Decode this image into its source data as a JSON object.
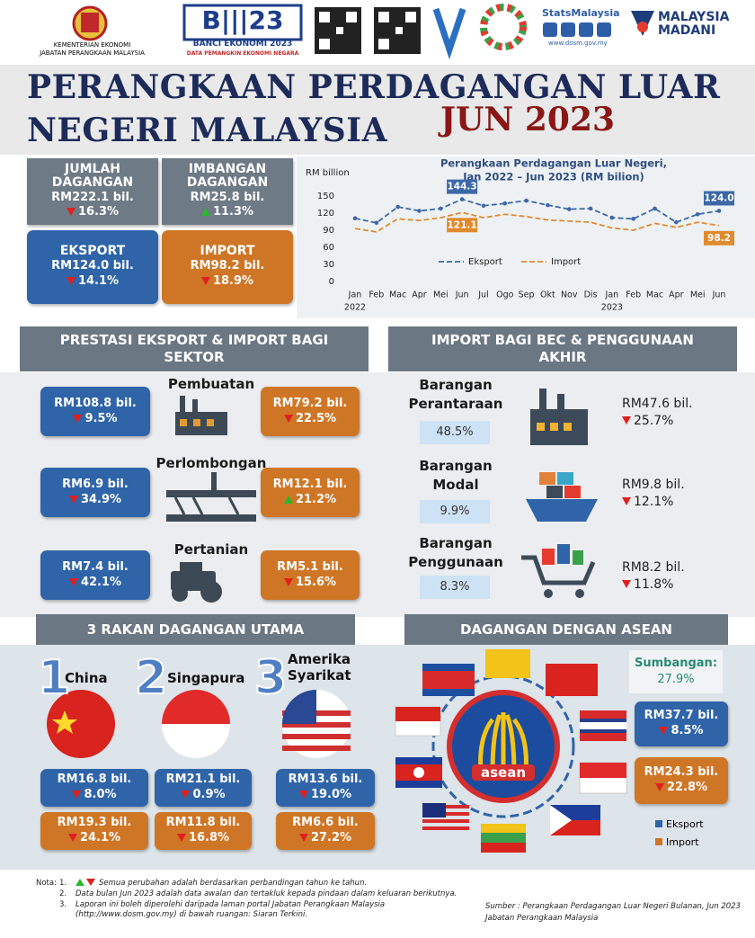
{
  "header": {
    "ministry": "KEMENTERIAN EKONOMI",
    "department": "JABATAN PERANGKAAN MALAYSIA",
    "census": "BANCI EKONOMI 2023",
    "census_tagline": "DATA PEMANGKIN EKONOMI NEGARA",
    "stats_brand": "StatsMalaysia",
    "website": "www.dosm.gov.my",
    "madani": "MALAYSIA MADANI"
  },
  "title": {
    "line1": "PERANGKAAN PERDAGANGAN LUAR",
    "line2": "NEGERI MALAYSIA",
    "period": "JUN 2023"
  },
  "summary": [
    {
      "label": "JUMLAH DAGANGAN",
      "value": "RM222.1 bil.",
      "change": "16.3%",
      "dir": "down"
    },
    {
      "label": "IMBANGAN DAGANGAN",
      "value": "RM25.8 bil.",
      "change": "11.3%",
      "dir": "up"
    },
    {
      "label": "EKSPORT",
      "value": "RM124.0 bil.",
      "change": "14.1%",
      "dir": "down"
    },
    {
      "label": "IMPORT",
      "value": "RM98.2 bil.",
      "change": "18.9%",
      "dir": "down"
    }
  ],
  "chart_data": {
    "type": "line",
    "title": "Perangkaan Perdagangan  Luar Negeri,",
    "subtitle": "Jan 2022 – Jun 2023 (RM bilion)",
    "y_label": "RM billion",
    "categories": [
      "Jan",
      "Feb",
      "Mac",
      "Apr",
      "Mei",
      "Jun",
      "Jul",
      "Ogo",
      "Sep",
      "Okt",
      "Nov",
      "Dis",
      "Jan",
      "Feb",
      "Mac",
      "Apr",
      "Mei",
      "Jun"
    ],
    "year_labels": [
      "2022",
      null,
      null,
      null,
      null,
      null,
      null,
      null,
      null,
      null,
      null,
      null,
      "2023",
      null,
      null,
      null,
      null,
      null
    ],
    "series": [
      {
        "name": "Eksport",
        "color": "#3d68a8",
        "values": [
          111,
          103,
          131,
          124,
          128,
          144.3,
          133,
          137,
          142,
          134,
          127,
          128,
          112,
          110,
          128,
          104,
          118,
          124.0
        ],
        "value_labels": [
          null,
          null,
          null,
          null,
          null,
          "144.3",
          null,
          null,
          null,
          null,
          null,
          null,
          null,
          null,
          null,
          null,
          null,
          "124.0"
        ]
      },
      {
        "name": "Import",
        "color": "#e08a2e",
        "values": [
          93,
          87,
          110,
          107,
          112,
          121.1,
          112,
          118,
          114,
          108,
          106,
          104,
          94,
          90,
          102,
          95,
          104,
          98.2
        ],
        "value_labels": [
          null,
          null,
          null,
          null,
          null,
          "121.1",
          null,
          null,
          null,
          null,
          null,
          null,
          null,
          null,
          null,
          null,
          null,
          "98.2"
        ]
      }
    ],
    "ylim": [
      0,
      150
    ],
    "yticks": [
      0,
      30,
      60,
      90,
      120,
      150
    ],
    "grid": false
  },
  "sectors": {
    "title": "PRESTASI EKSPORT & IMPORT BAGI SEKTOR",
    "items": [
      {
        "name": "Pembuatan",
        "export": {
          "value": "RM108.8 bil.",
          "change": "9.5%",
          "dir": "down"
        },
        "import": {
          "value": "RM79.2 bil.",
          "change": "22.5%",
          "dir": "down"
        }
      },
      {
        "name": "Perlombongan",
        "export": {
          "value": "RM6.9 bil.",
          "change": "34.9%",
          "dir": "down"
        },
        "import": {
          "value": "RM12.1 bil.",
          "change": "21.2%",
          "dir": "up"
        }
      },
      {
        "name": "Pertanian",
        "export": {
          "value": "RM7.4 bil.",
          "change": "42.1%",
          "dir": "down"
        },
        "import": {
          "value": "RM5.1 bil.",
          "change": "15.6%",
          "dir": "down"
        }
      }
    ]
  },
  "bec": {
    "title": "IMPORT BAGI BEC & PENGGUNAAN AKHIR",
    "items": [
      {
        "name": "Barangan Perantaraan",
        "share": "48.5%",
        "value": "RM47.6 bil.",
        "change": "25.7%",
        "dir": "down"
      },
      {
        "name": "Barangan Modal",
        "share": "9.9%",
        "value": "RM9.8 bil.",
        "change": "12.1%",
        "dir": "down"
      },
      {
        "name": "Barangan Penggunaan",
        "share": "8.3%",
        "value": "RM8.2 bil.",
        "change": "11.8%",
        "dir": "down"
      }
    ]
  },
  "partners": {
    "title": "3 RAKAN DAGANGAN UTAMA",
    "items": [
      {
        "rank": "1",
        "name": "China",
        "export": {
          "value": "RM16.8 bil.",
          "change": "8.0%",
          "dir": "down"
        },
        "import": {
          "value": "RM19.3 bil.",
          "change": "24.1%",
          "dir": "down"
        }
      },
      {
        "rank": "2",
        "name": "Singapura",
        "export": {
          "value": "RM21.1 bil.",
          "change": "0.9%",
          "dir": "down"
        },
        "import": {
          "value": "RM11.8 bil.",
          "change": "16.8%",
          "dir": "down"
        }
      },
      {
        "rank": "3",
        "name": "Amerika Syarikat",
        "export": {
          "value": "RM13.6 bil.",
          "change": "19.0%",
          "dir": "down"
        },
        "import": {
          "value": "RM6.6 bil.",
          "change": "27.2%",
          "dir": "down"
        }
      }
    ]
  },
  "asean": {
    "title": "DAGANGAN DENGAN ASEAN",
    "share_label": "Sumbangan:",
    "share": "27.9%",
    "logo_text": "asean",
    "export": {
      "value": "RM37.7 bil.",
      "change": "8.5%",
      "dir": "down"
    },
    "import": {
      "value": "RM24.3 bil.",
      "change": "22.8%",
      "dir": "down"
    },
    "legend": [
      "Eksport",
      "Import"
    ]
  },
  "notes": {
    "heading": "Nota:",
    "items": [
      {
        "number": "1.",
        "text": "Semua perubahan adalah berdasarkan perbandingan tahun ke tahun."
      },
      {
        "number": "2.",
        "text": "Data bulan Jun 2023 adalah data awalan dan tertakluk kepada pindaan dalam keluaran berikutnya."
      },
      {
        "number": "3.",
        "text": "Laporan ini boleh diperolehi daripada laman portal Jabatan Perangkaan Malaysia (http://www.dosm.gov.my) di bawah ruangan: Siaran Terkini."
      }
    ]
  },
  "source": [
    "Sumber : Perangkaan Perdagangan Luar Negeri Bulanan, Jun 2023",
    "Jabatan Perangkaan Malaysia"
  ]
}
